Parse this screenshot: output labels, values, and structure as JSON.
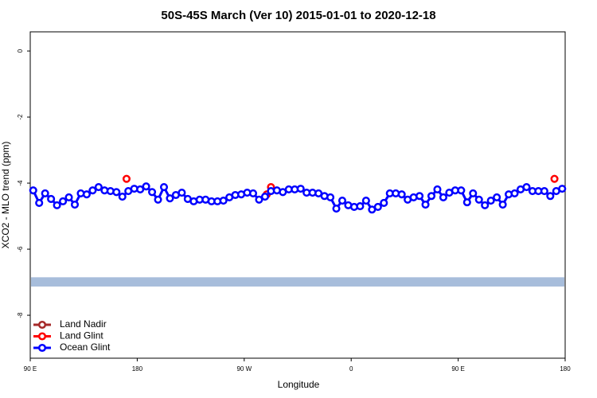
{
  "chart_data": {
    "type": "line",
    "title": "50S-45S March (Ver 10)   2015-01-01 to 2020-12-18",
    "x_label": "Longitude",
    "y_label": "XCO2 - MLO trend (ppm)",
    "xlim": [
      90,
      540
    ],
    "ylim": [
      -9.3,
      0.58
    ],
    "xticks": [
      {
        "value": 90,
        "label": "90 E"
      },
      {
        "value": 180,
        "label": "180"
      },
      {
        "value": 270,
        "label": "90 W"
      },
      {
        "value": 360,
        "label": "0"
      },
      {
        "value": 450,
        "label": "90 E"
      },
      {
        "value": 540,
        "label": "180"
      }
    ],
    "yticks": [
      0,
      -2,
      -4,
      -6,
      -8
    ],
    "band_ylim": [
      -7.13,
      -6.85
    ],
    "band_color": "#a7bddb",
    "legend": "bottom-left",
    "series": [
      {
        "name": "Land Nadir",
        "color": "#a52a2a",
        "x": [],
        "values": []
      },
      {
        "name": "Land Glint",
        "color": "#ff0000",
        "x": [
          171,
          200,
          289,
          292.5,
          400,
          531
        ],
        "values": [
          -3.87,
          null,
          -4.34,
          -4.12,
          null,
          -3.87
        ]
      },
      {
        "name": "Ocean Glint",
        "color": "#0000ff",
        "x": [
          92.5,
          97.5,
          102.5,
          107.5,
          112.5,
          117.5,
          122.5,
          127.5,
          132.5,
          137.5,
          142.5,
          147.5,
          152.5,
          157.5,
          162.5,
          167.5,
          172.5,
          177.5,
          182.5,
          187.5,
          192.5,
          197.5,
          202.5,
          207.5,
          212.5,
          217.5,
          222.5,
          227.5,
          232.5,
          237.5,
          242.5,
          247.5,
          252.5,
          257.5,
          262.5,
          267.5,
          272.5,
          277.5,
          282.5,
          287.5,
          292.5,
          297.5,
          302.5,
          307.5,
          312.5,
          317.5,
          322.5,
          327.5,
          332.5,
          337.5,
          342.5,
          347.5,
          352.5,
          357.5,
          362.5,
          367.5,
          372.5,
          377.5,
          382.5,
          387.5,
          392.5,
          397.5,
          402.5,
          407.5,
          412.5,
          417.5,
          422.5,
          427.5,
          432.5,
          437.5,
          442.5,
          447.5,
          452.5,
          457.5,
          462.5,
          467.5,
          472.5,
          477.5,
          482.5,
          487.5,
          492.5,
          497.5,
          502.5,
          507.5,
          512.5,
          517.5,
          522.5,
          527.5,
          532.5,
          537.5
        ],
        "values": [
          -4.22,
          -4.6,
          -4.31,
          -4.48,
          -4.67,
          -4.55,
          -4.43,
          -4.65,
          -4.31,
          -4.34,
          -4.22,
          -4.12,
          -4.22,
          -4.24,
          -4.27,
          -4.41,
          -4.24,
          -4.17,
          -4.19,
          -4.1,
          -4.27,
          -4.5,
          -4.12,
          -4.46,
          -4.36,
          -4.29,
          -4.48,
          -4.55,
          -4.5,
          -4.5,
          -4.55,
          -4.55,
          -4.53,
          -4.43,
          -4.36,
          -4.34,
          -4.29,
          -4.31,
          -4.5,
          -4.41,
          -4.24,
          -4.22,
          -4.27,
          -4.19,
          -4.19,
          -4.17,
          -4.29,
          -4.29,
          -4.31,
          -4.39,
          -4.43,
          -4.77,
          -4.53,
          -4.67,
          -4.72,
          -4.7,
          -4.53,
          -4.8,
          -4.72,
          -4.6,
          -4.31,
          -4.31,
          -4.34,
          -4.5,
          -4.43,
          -4.39,
          -4.65,
          -4.39,
          -4.19,
          -4.43,
          -4.29,
          -4.22,
          -4.22,
          -4.58,
          -4.31,
          -4.5,
          -4.67,
          -4.53,
          -4.43,
          -4.65,
          -4.34,
          -4.31,
          -4.19,
          -4.12,
          -4.24,
          -4.24,
          -4.24,
          -4.39,
          -4.24,
          -4.17
        ]
      }
    ]
  }
}
